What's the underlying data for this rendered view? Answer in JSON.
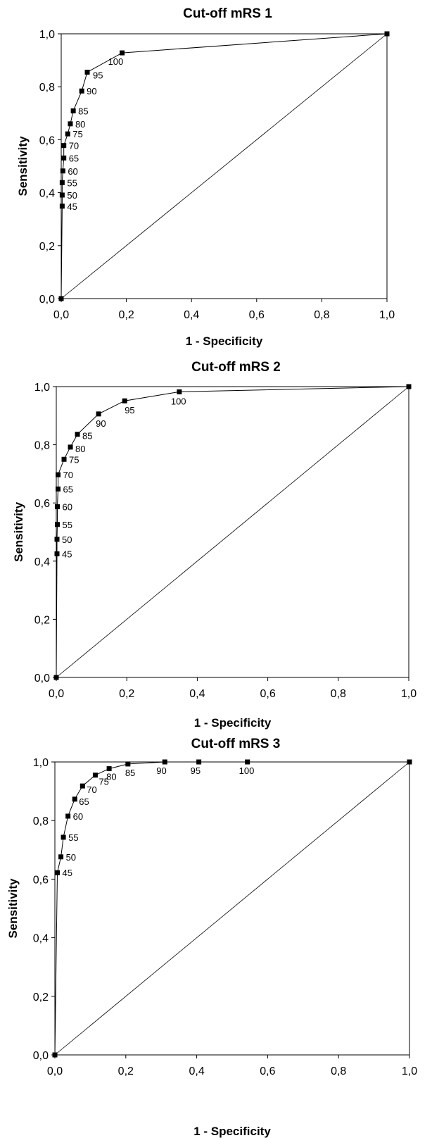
{
  "chart_data": [
    {
      "type": "line",
      "title": "Cut-off mRS 1",
      "xlabel": "1 - Specificity",
      "ylabel": "Sensitivity",
      "xlim": [
        0,
        1
      ],
      "ylim": [
        0,
        1
      ],
      "x_ticks": [
        "0,0",
        "0,2",
        "0,4",
        "0,6",
        "0,8",
        "1,0"
      ],
      "y_ticks": [
        "0,0",
        "0,2",
        "0,4",
        "0,6",
        "0,8",
        "1,0"
      ],
      "grid": false,
      "diagonal": true,
      "series": [
        {
          "x": [
            0,
            0.003,
            0.003,
            0.003,
            0.005,
            0.008,
            0.008,
            0.02,
            0.028,
            0.037,
            0.063,
            0.08,
            0.187,
            1
          ],
          "y": [
            0,
            0.349,
            0.391,
            0.438,
            0.482,
            0.531,
            0.578,
            0.622,
            0.66,
            0.709,
            0.784,
            0.855,
            0.928,
            1
          ],
          "point_labels": [
            "",
            "45",
            "50",
            "55",
            "60",
            "65",
            "70",
            "75",
            "80",
            "85",
            "90",
            "95",
            "100",
            ""
          ]
        }
      ]
    },
    {
      "type": "line",
      "title": "Cut-off mRS 2",
      "xlabel": "1 - Specificity",
      "ylabel": "Sensitivity",
      "xlim": [
        0,
        1
      ],
      "ylim": [
        0,
        1
      ],
      "x_ticks": [
        "0,0",
        "0,2",
        "0,4",
        "0,6",
        "0,8",
        "1,0"
      ],
      "y_ticks": [
        "0,0",
        "0,2",
        "0,4",
        "0,6",
        "0,8",
        "1,0"
      ],
      "grid": false,
      "diagonal": true,
      "series": [
        {
          "x": [
            0,
            0.002,
            0.002,
            0.003,
            0.003,
            0.005,
            0.005,
            0.022,
            0.04,
            0.06,
            0.12,
            0.194,
            0.349,
            1
          ],
          "y": [
            0,
            0.425,
            0.475,
            0.526,
            0.587,
            0.648,
            0.697,
            0.75,
            0.792,
            0.836,
            0.906,
            0.951,
            0.982,
            1
          ],
          "point_labels": [
            "",
            "45",
            "50",
            "55",
            "60",
            "65",
            "70",
            "75",
            "80",
            "85",
            "90",
            "95",
            "100",
            ""
          ]
        }
      ]
    },
    {
      "type": "line",
      "title": "Cut-off mRS 3",
      "xlabel": "1 - Specificity",
      "ylabel": "Sensitivity",
      "xlim": [
        0,
        1
      ],
      "ylim": [
        0,
        1
      ],
      "x_ticks": [
        "0,0",
        "0,2",
        "0,4",
        "0,6",
        "0,8",
        "1,0"
      ],
      "y_ticks": [
        "0,0",
        "0,2",
        "0,4",
        "0,6",
        "0,8",
        "1,0"
      ],
      "grid": false,
      "diagonal": true,
      "series": [
        {
          "x": [
            0,
            0.007,
            0.017,
            0.024,
            0.037,
            0.056,
            0.078,
            0.114,
            0.153,
            0.206,
            0.31,
            0.406,
            0.543,
            1
          ],
          "y": [
            0,
            0.622,
            0.676,
            0.743,
            0.815,
            0.873,
            0.918,
            0.955,
            0.977,
            0.993,
            1,
            1,
            1,
            1
          ],
          "point_labels": [
            "",
            "45",
            "50",
            "55",
            "60",
            "65",
            "70",
            "75",
            "80",
            "85",
            "90",
            "95",
            "100",
            ""
          ]
        }
      ]
    }
  ]
}
